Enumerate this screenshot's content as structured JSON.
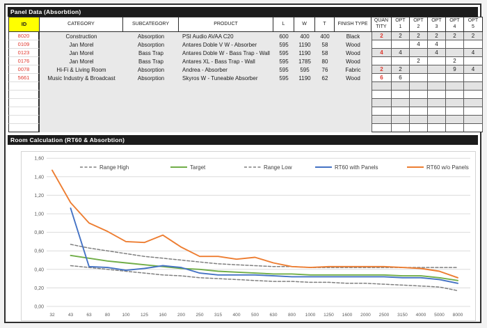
{
  "sections": {
    "panel_data_title": "Panel Data (Absorbtion)",
    "room_calc_title": "Room Calculation (RT60 & Absorbtion)"
  },
  "table": {
    "headers": [
      "ID",
      "CATEGORY",
      "SUBCATEGORY",
      "PRODUCT",
      "L",
      "W",
      "T",
      "FINISH TYPE",
      "QUAN\nTITY",
      "OPT\n1",
      "OPT\n2",
      "OPT\n3",
      "OPT\n4",
      "OPT\n5"
    ],
    "rows": [
      {
        "id": "8020",
        "category": "Construction",
        "subcategory": "Absorption",
        "product": "PSI Audio AVAA C20",
        "l": "600",
        "w": "400",
        "t": "400",
        "finish": "Black",
        "quantity": "2",
        "opts": [
          "2",
          "2",
          "2",
          "2",
          "2"
        ]
      },
      {
        "id": "0109",
        "category": "Jan Morel",
        "subcategory": "Absorption",
        "product": "Antares Doble V W - Absorber",
        "l": "595",
        "w": "1190",
        "t": "58",
        "finish": "Wood",
        "quantity": "",
        "opts": [
          "",
          "4",
          "4",
          "",
          ""
        ]
      },
      {
        "id": "0123",
        "category": "Jan Morel",
        "subcategory": "Bass Trap",
        "product": "Antares Doble W - Bass Trap - Wall",
        "l": "595",
        "w": "1190",
        "t": "58",
        "finish": "Wood",
        "quantity": "4",
        "opts": [
          "4",
          "",
          "4",
          "",
          "4"
        ]
      },
      {
        "id": "0176",
        "category": "Jan Morel",
        "subcategory": "Bass Trap",
        "product": "Antares XL - Bass Trap - Wall",
        "l": "595",
        "w": "1785",
        "t": "80",
        "finish": "Wood",
        "quantity": "",
        "opts": [
          "",
          "2",
          "",
          "2",
          ""
        ]
      },
      {
        "id": "0078",
        "category": "Hi-Fi & Living Room",
        "subcategory": "Absorption",
        "product": "Andrea - Absorber",
        "l": "595",
        "w": "595",
        "t": "76",
        "finish": "Fabric",
        "quantity": "2",
        "opts": [
          "2",
          "",
          "",
          "9",
          "4"
        ]
      },
      {
        "id": "5661",
        "category": "Music Industry & Broadcast",
        "subcategory": "Absorption",
        "product": "Skyros W - Tuneable Absorber",
        "l": "595",
        "w": "1190",
        "t": "62",
        "finish": "Wood",
        "quantity": "6",
        "opts": [
          "6",
          "",
          "",
          "",
          ""
        ]
      }
    ],
    "empty_row_count": 6,
    "id_color": "#e0362c",
    "id_header_bg": "#ffff00"
  },
  "chart_data": {
    "type": "line",
    "categories": [
      "32",
      "43",
      "63",
      "80",
      "100",
      "125",
      "160",
      "200",
      "250",
      "315",
      "400",
      "500",
      "630",
      "800",
      "1000",
      "1250",
      "1600",
      "2000",
      "2500",
      "3150",
      "4000",
      "5000",
      "8000"
    ],
    "y_tick_labels": [
      "0,00",
      "0,20",
      "0,40",
      "0,60",
      "0,80",
      "1,00",
      "1,20",
      "1,40",
      "1,60"
    ],
    "ylim": [
      0,
      1.6
    ],
    "ytick_step": 0.2,
    "grid": true,
    "legend_position": "top-inside",
    "series": [
      {
        "name": "Range High",
        "color": "#7f7f7f",
        "dashed": true,
        "values": [
          null,
          0.67,
          0.63,
          0.6,
          0.57,
          0.54,
          0.52,
          0.5,
          0.48,
          0.46,
          0.45,
          0.44,
          0.43,
          0.43,
          0.42,
          0.42,
          0.42,
          0.42,
          0.42,
          0.42,
          0.42,
          0.42,
          0.42
        ]
      },
      {
        "name": "Target",
        "color": "#70ad47",
        "dashed": false,
        "values": [
          null,
          0.55,
          0.52,
          0.49,
          0.47,
          0.45,
          0.43,
          0.41,
          0.4,
          0.38,
          0.37,
          0.36,
          0.35,
          0.35,
          0.34,
          0.34,
          0.34,
          0.34,
          0.34,
          0.33,
          0.33,
          0.31,
          0.28
        ]
      },
      {
        "name": "Range Low",
        "color": "#7f7f7f",
        "dashed": true,
        "values": [
          null,
          0.44,
          0.42,
          0.4,
          0.38,
          0.36,
          0.34,
          0.33,
          0.31,
          0.3,
          0.29,
          0.28,
          0.27,
          0.27,
          0.26,
          0.26,
          0.25,
          0.25,
          0.24,
          0.23,
          0.22,
          0.21,
          0.17
        ]
      },
      {
        "name": "RT60 with Panels",
        "color": "#4472c4",
        "dashed": false,
        "values": [
          null,
          1.06,
          0.43,
          0.42,
          0.39,
          0.41,
          0.44,
          0.42,
          0.36,
          0.34,
          0.34,
          0.34,
          0.33,
          0.32,
          0.32,
          0.32,
          0.32,
          0.32,
          0.32,
          0.31,
          0.31,
          0.29,
          0.25
        ]
      },
      {
        "name": "RT60 w/o Panels",
        "color": "#ed7d31",
        "dashed": false,
        "values": [
          1.47,
          1.12,
          0.9,
          0.81,
          0.7,
          0.69,
          0.77,
          0.64,
          0.54,
          0.54,
          0.51,
          0.53,
          0.47,
          0.43,
          0.42,
          0.43,
          0.43,
          0.43,
          0.43,
          0.42,
          0.41,
          0.38,
          0.31
        ]
      }
    ]
  },
  "chart_colors": {
    "gridline": "#dcdcdc",
    "axis_text": "#595959",
    "legend_text": "#404040"
  }
}
